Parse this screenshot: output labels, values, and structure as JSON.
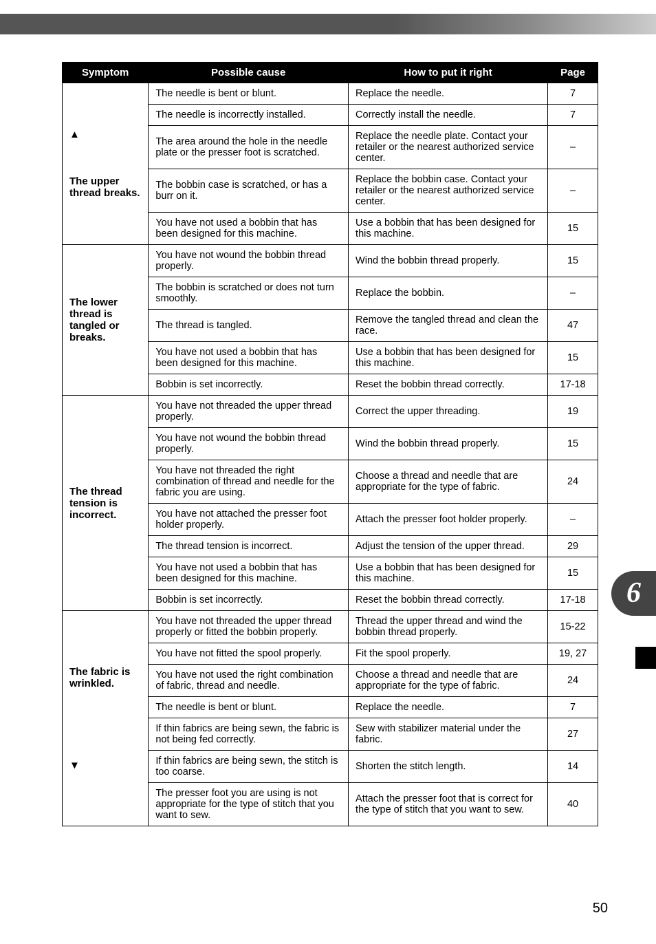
{
  "page_number": "50",
  "section_number": "6",
  "table": {
    "headers": [
      "Symptom",
      "Possible cause",
      "How to put it right",
      "Page"
    ],
    "groups": [
      {
        "symptom_html": "▲<br><br><br><br>The upper thread breaks.",
        "rows": [
          {
            "cause": "The needle is bent or blunt.",
            "fix": "Replace the needle.",
            "page": "7"
          },
          {
            "cause": "The needle is incorrectly installed.",
            "fix": "Correctly install the needle.",
            "page": "7"
          },
          {
            "cause": "The area around the hole in the needle plate or the presser foot is scratched.",
            "fix": "Replace the needle plate. Contact your retailer or the nearest authorized service center.",
            "page": "–"
          },
          {
            "cause": "The bobbin case is scratched, or has a burr on it.",
            "fix": "Replace the bobbin case. Contact your retailer or the nearest authorized service center.",
            "page": "–"
          },
          {
            "cause": "You have not used a bobbin that has been designed for this machine.",
            "fix": "Use a bobbin that has been designed for this machine.",
            "page": "15"
          }
        ]
      },
      {
        "symptom_html": "The lower thread is tangled or breaks.",
        "rows": [
          {
            "cause": "You have not wound the bobbin thread properly.",
            "fix": "Wind the bobbin thread properly.",
            "page": "15"
          },
          {
            "cause": "The bobbin is scratched or does not turn smoothly.",
            "fix": "Replace the bobbin.",
            "page": "–"
          },
          {
            "cause": "The thread is tangled.",
            "fix": "Remove the tangled thread and clean the race.",
            "page": "47"
          },
          {
            "cause": "You have not used a bobbin that has been designed for this machine.",
            "fix": "Use a bobbin that has been designed for this machine.",
            "page": "15"
          },
          {
            "cause": "Bobbin is set incorrectly.",
            "fix": "Reset the bobbin thread correctly.",
            "page": "17-18"
          }
        ]
      },
      {
        "symptom_html": "The thread tension is incorrect.",
        "rows": [
          {
            "cause": "You have not threaded the upper thread properly.",
            "fix": "Correct the upper threading.",
            "page": "19"
          },
          {
            "cause": "You have not wound the bobbin thread properly.",
            "fix": "Wind the bobbin thread properly.",
            "page": "15"
          },
          {
            "cause": "You have not threaded the right combination of thread and needle for the fabric you are using.",
            "fix": "Choose a thread and needle that are appropriate for the type of fabric.",
            "page": "24"
          },
          {
            "cause": "You have not attached the presser foot holder properly.",
            "fix": "Attach the presser foot holder properly.",
            "page": "–"
          },
          {
            "cause": "The thread tension is incorrect.",
            "fix": "Adjust the tension of the upper thread.",
            "page": "29"
          },
          {
            "cause": "You have not used a bobbin that has been designed for this machine.",
            "fix": "Use a bobbin that has been designed for this machine.",
            "page": "15"
          },
          {
            "cause": "Bobbin is set incorrectly.",
            "fix": "Reset the bobbin thread correctly.",
            "page": "17-18"
          }
        ]
      },
      {
        "symptom_html": "The fabric is wrinkled.<br><br><br><br><br><br><br>▼",
        "rows": [
          {
            "cause": "You have not threaded the upper thread properly or fitted the bobbin properly.",
            "fix": "Thread the upper thread and wind the bobbin thread properly.",
            "page": "15-22"
          },
          {
            "cause": "You have not fitted the spool properly.",
            "fix": "Fit the spool properly.",
            "page": "19, 27"
          },
          {
            "cause": "You have not used the right combination of fabric, thread and needle.",
            "fix": "Choose a thread and needle that are appropriate for the type of fabric.",
            "page": "24"
          },
          {
            "cause": "The needle is bent or blunt.",
            "fix": "Replace the needle.",
            "page": "7"
          },
          {
            "cause": "If thin fabrics are being sewn, the fabric is not being fed correctly.",
            "fix": "Sew with stabilizer material under the fabric.",
            "page": "27"
          },
          {
            "cause": "If thin fabrics are being sewn, the stitch is too coarse.",
            "fix": "Shorten the stitch length.",
            "page": "14"
          },
          {
            "cause": "The presser foot you are using is not appropriate for the type of stitch that you want to sew.",
            "fix": "Attach the presser foot that is correct for the type of stitch that you want to sew.",
            "page": "40"
          }
        ]
      }
    ]
  }
}
